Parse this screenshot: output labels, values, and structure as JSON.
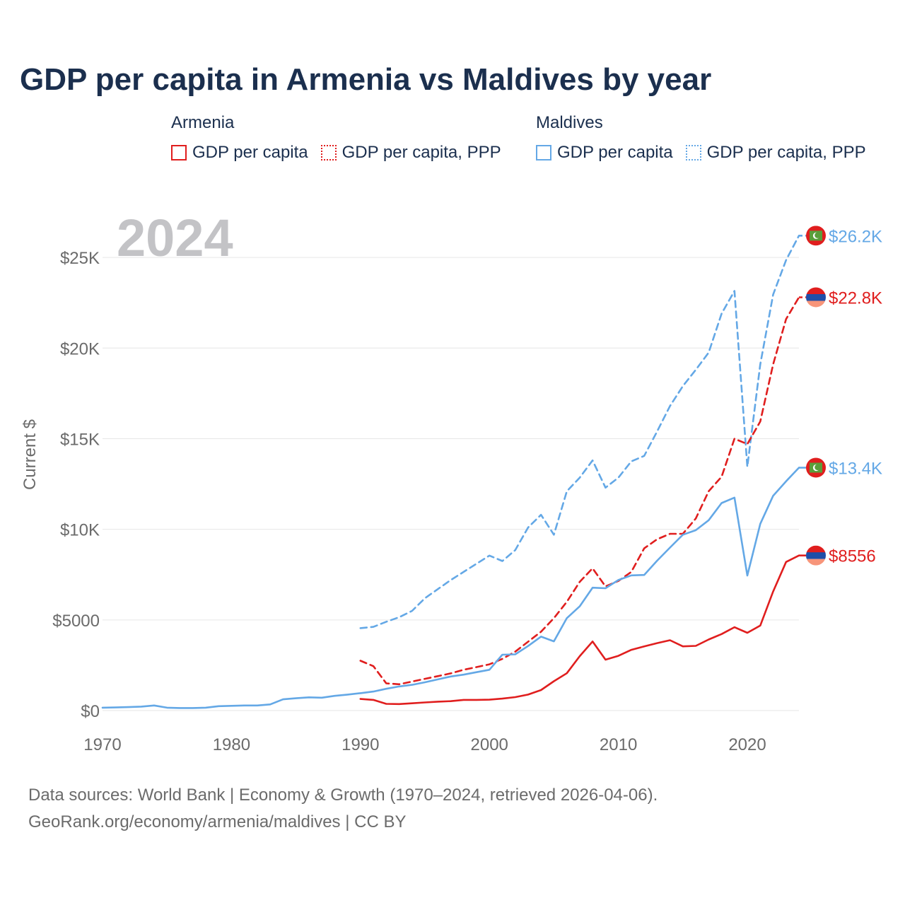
{
  "title": "GDP per capita in Armenia vs Maldives by year",
  "legend": {
    "armenia": {
      "name": "Armenia",
      "solid": "GDP per capita",
      "dashed": "GDP per capita, PPP"
    },
    "maldives": {
      "name": "Maldives",
      "solid": "GDP per capita",
      "dashed": "GDP per capita, PPP"
    }
  },
  "source": {
    "line1": "Data sources: World Bank | Economy & Growth (1970–2024, retrieved 2026-04-06).",
    "line2": "GeoRank.org/economy/armenia/maldives | CC BY"
  },
  "colors": {
    "armenia": "#e01e1e",
    "maldives": "#64a8e6",
    "title": "#1b2f4e",
    "axis_text": "#6b6b6b",
    "year_watermark": "#c3c3c6",
    "grid": "#e6e6e6"
  },
  "chart_data": {
    "type": "line",
    "year_label": "2024",
    "ylabel": "Current $",
    "xlim": [
      1970,
      2024
    ],
    "ylim": [
      0,
      27500
    ],
    "x_ticks": [
      1970,
      1980,
      1990,
      2000,
      2010,
      2020
    ],
    "x_tick_labels": [
      "1970",
      "1980",
      "1990",
      "2000",
      "2010",
      "2020"
    ],
    "y_ticks": [
      0,
      5000,
      10000,
      15000,
      20000,
      25000
    ],
    "y_tick_labels": [
      "$0",
      "$5000",
      "$10K",
      "$15K",
      "$20K",
      "$25K"
    ],
    "series": [
      {
        "name": "Maldives GDP per capita, PPP",
        "country": "maldives",
        "style": "dashed",
        "end_label": "$26.2K",
        "x": [
          1990,
          1991,
          1992,
          1993,
          1994,
          1995,
          1996,
          1997,
          1998,
          1999,
          2000,
          2001,
          2002,
          2003,
          2004,
          2005,
          2006,
          2007,
          2008,
          2009,
          2010,
          2011,
          2012,
          2013,
          2014,
          2015,
          2016,
          2017,
          2018,
          2019,
          2020,
          2021,
          2022,
          2023,
          2024
        ],
        "values": [
          4550,
          4620,
          4900,
          5150,
          5500,
          6200,
          6700,
          7200,
          7650,
          8100,
          8550,
          8250,
          8850,
          10100,
          10800,
          9700,
          12100,
          12850,
          13800,
          12300,
          12850,
          13750,
          14050,
          15400,
          16800,
          17900,
          18800,
          19750,
          21900,
          23150,
          13450,
          19100,
          22950,
          24850,
          26200
        ]
      },
      {
        "name": "Armenia GDP per capita, PPP",
        "country": "armenia",
        "style": "dashed",
        "end_label": "$22.8K",
        "x": [
          1990,
          1991,
          1992,
          1993,
          1994,
          1995,
          1996,
          1997,
          1998,
          1999,
          2000,
          2001,
          2002,
          2003,
          2004,
          2005,
          2006,
          2007,
          2008,
          2009,
          2010,
          2011,
          2012,
          2013,
          2014,
          2015,
          2016,
          2017,
          2018,
          2019,
          2020,
          2021,
          2022,
          2023,
          2024
        ],
        "values": [
          2750,
          2450,
          1500,
          1450,
          1600,
          1750,
          1900,
          2050,
          2250,
          2400,
          2550,
          2850,
          3250,
          3800,
          4350,
          5100,
          6000,
          7100,
          7850,
          6850,
          7150,
          7650,
          8950,
          9450,
          9750,
          9750,
          10600,
          12100,
          12900,
          15000,
          14700,
          15950,
          19100,
          21600,
          22800
        ]
      },
      {
        "name": "Maldives GDP per capita",
        "country": "maldives",
        "style": "solid",
        "end_label": "$13.4K",
        "x": [
          1970,
          1971,
          1972,
          1973,
          1974,
          1975,
          1976,
          1977,
          1978,
          1979,
          1980,
          1981,
          1982,
          1983,
          1984,
          1985,
          1986,
          1987,
          1988,
          1989,
          1990,
          1991,
          1992,
          1993,
          1994,
          1995,
          1996,
          1997,
          1998,
          1999,
          2000,
          2001,
          2002,
          2003,
          2004,
          2005,
          2006,
          2007,
          2008,
          2009,
          2010,
          2011,
          2012,
          2013,
          2014,
          2015,
          2016,
          2017,
          2018,
          2019,
          2020,
          2021,
          2022,
          2023,
          2024
        ],
        "values": [
          160,
          170,
          190,
          220,
          280,
          160,
          140,
          140,
          160,
          240,
          260,
          280,
          280,
          340,
          620,
          680,
          730,
          710,
          810,
          880,
          960,
          1050,
          1200,
          1330,
          1420,
          1560,
          1720,
          1880,
          1980,
          2120,
          2250,
          3080,
          3100,
          3560,
          4080,
          3820,
          5100,
          5750,
          6780,
          6750,
          7200,
          7460,
          7480,
          8270,
          8990,
          9700,
          9950,
          10500,
          11450,
          11750,
          7450,
          10300,
          11850,
          12650,
          13400
        ]
      },
      {
        "name": "Armenia GDP per capita",
        "country": "armenia",
        "style": "solid",
        "end_label": "$8556",
        "x": [
          1990,
          1991,
          1992,
          1993,
          1994,
          1995,
          1996,
          1997,
          1998,
          1999,
          2000,
          2001,
          2002,
          2003,
          2004,
          2005,
          2006,
          2007,
          2008,
          2009,
          2010,
          2011,
          2012,
          2013,
          2014,
          2015,
          2016,
          2017,
          2018,
          2019,
          2020,
          2021,
          2022,
          2023,
          2024
        ],
        "values": [
          640,
          590,
          370,
          360,
          400,
          450,
          490,
          520,
          590,
          590,
          600,
          660,
          740,
          880,
          1130,
          1620,
          2060,
          3000,
          3810,
          2810,
          3020,
          3350,
          3540,
          3720,
          3880,
          3540,
          3570,
          3920,
          4220,
          4600,
          4290,
          4690,
          6570,
          8200,
          8556
        ]
      }
    ]
  }
}
